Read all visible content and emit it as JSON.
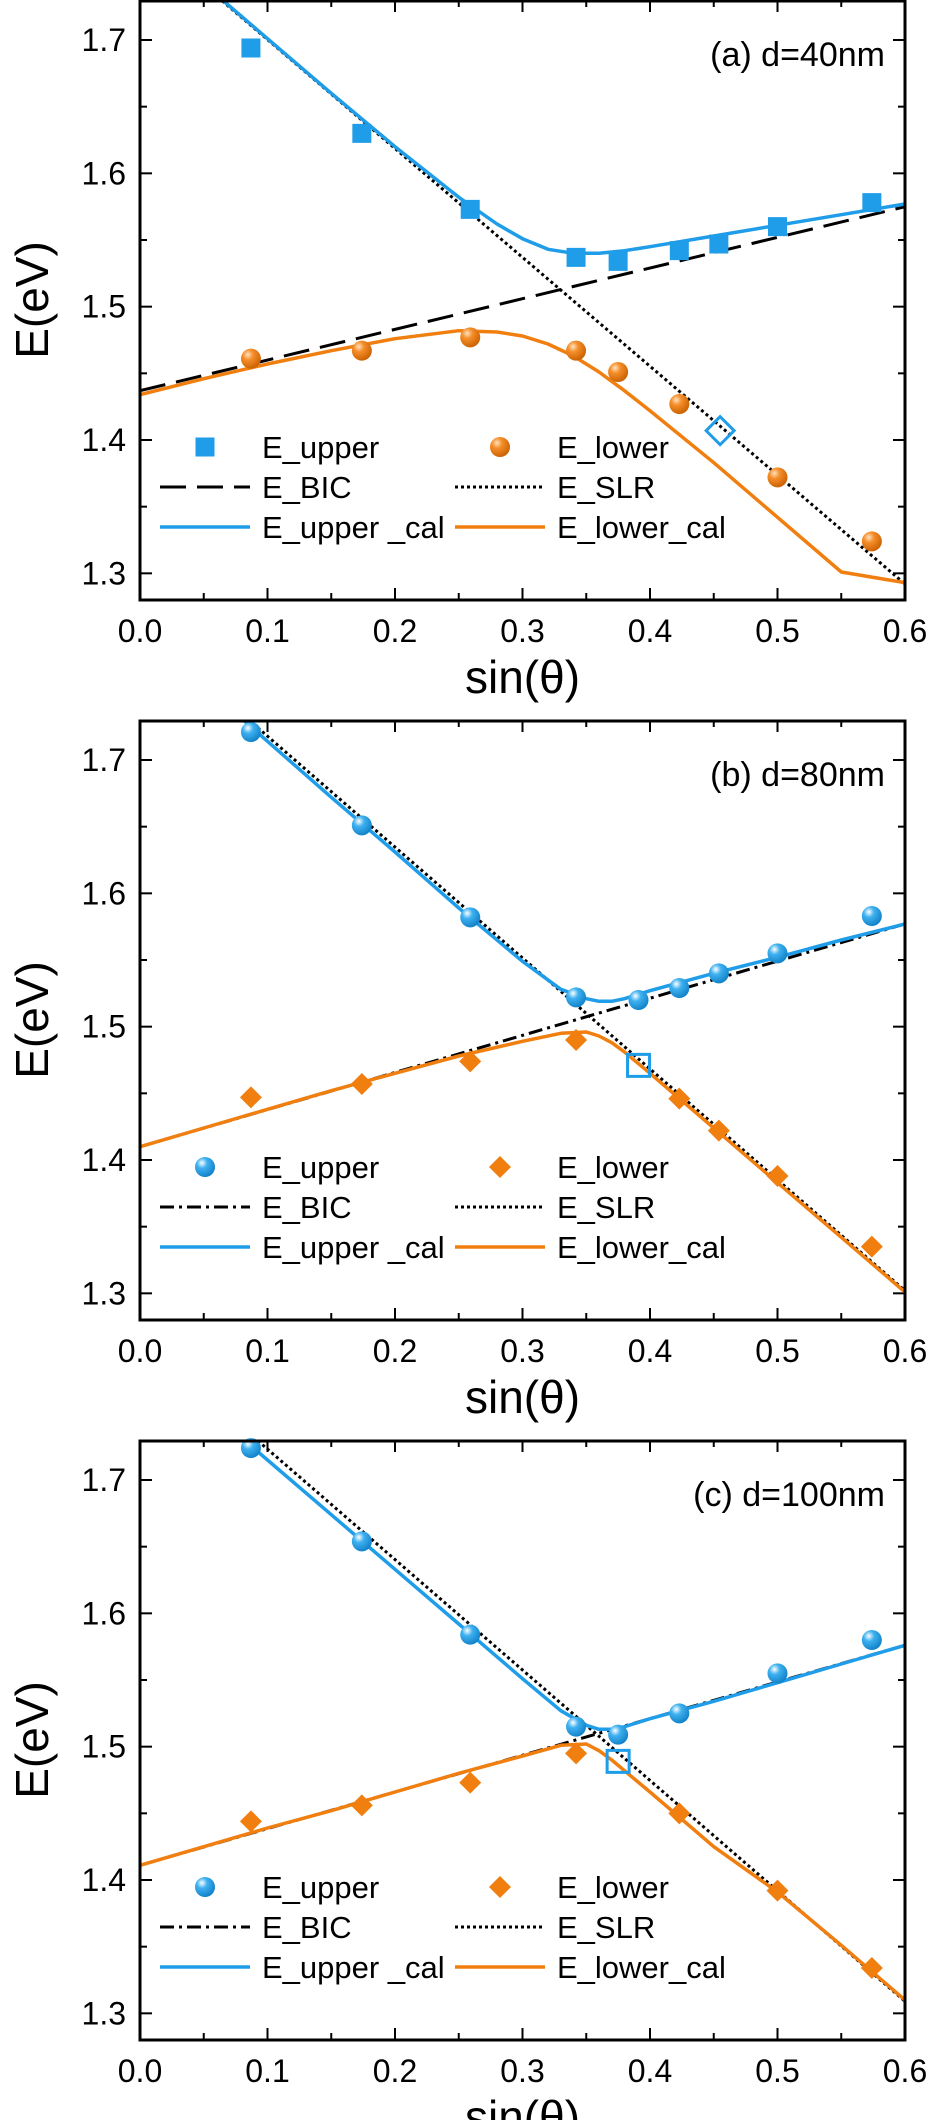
{
  "colors": {
    "blue": "#1F9DE8",
    "orange": "#F07F10",
    "black": "#000000"
  },
  "chart_data": [
    {
      "type": "line",
      "panel_label": "(a) d=40nm",
      "xlabel": "sin(θ)",
      "ylabel": "E(eV)",
      "xlim": [
        0.0,
        0.6
      ],
      "ylim": [
        1.28,
        1.73
      ],
      "xticks": [
        "0.0",
        "0.1",
        "0.2",
        "0.3",
        "0.4",
        "0.5",
        "0.6"
      ],
      "yticks": [
        "1.3",
        "1.4",
        "1.5",
        "1.6",
        "1.7"
      ],
      "legend": [
        {
          "label": "E_upper",
          "kind": "square",
          "color": "#1F9DE8"
        },
        {
          "label": "E_lower",
          "kind": "sphere",
          "color": "#F07F10"
        },
        {
          "label": "E_BIC",
          "kind": "dash",
          "color": "#000000"
        },
        {
          "label": "E_SLR",
          "kind": "dot",
          "color": "#000000"
        },
        {
          "label": "E_upper _cal",
          "kind": "solid",
          "color": "#1F9DE8"
        },
        {
          "label": "E_lower_cal",
          "kind": "solid",
          "color": "#F07F10"
        }
      ],
      "series": [
        {
          "name": "E_upper",
          "marker": "square",
          "color": "#1F9DE8",
          "x": [
            0.087,
            0.174,
            0.259,
            0.342,
            0.375,
            0.423,
            0.454,
            0.5,
            0.574
          ],
          "y": [
            1.694,
            1.63,
            1.573,
            1.537,
            1.534,
            1.542,
            1.547,
            1.56,
            1.578
          ]
        },
        {
          "name": "E_lower",
          "marker": "sphere",
          "color": "#F07F10",
          "x": [
            0.087,
            0.174,
            0.259,
            0.342,
            0.375,
            0.423,
            0.5,
            0.574
          ],
          "y": [
            1.461,
            1.467,
            1.477,
            1.467,
            1.451,
            1.427,
            1.372,
            1.324
          ]
        },
        {
          "name": "anticrossing",
          "marker": "open-diamond",
          "color": "#1F9DE8",
          "x": [
            0.455
          ],
          "y": [
            1.407
          ]
        },
        {
          "name": "E_BIC",
          "line": "dash",
          "color": "#000000",
          "x": [
            0.0,
            0.6
          ],
          "y": [
            1.437,
            1.575
          ]
        },
        {
          "name": "E_SLR",
          "line": "dot",
          "color": "#000000",
          "x": [
            0.0,
            0.6
          ],
          "y": [
            1.782,
            1.292
          ]
        },
        {
          "name": "E_upper _cal",
          "line": "solid",
          "color": "#1F9DE8",
          "x": [
            0.0,
            0.05,
            0.1,
            0.15,
            0.2,
            0.25,
            0.28,
            0.3,
            0.32,
            0.34,
            0.36,
            0.38,
            0.4,
            0.45,
            0.5,
            0.55,
            0.6
          ],
          "y": [
            1.783,
            1.742,
            1.701,
            1.66,
            1.62,
            1.582,
            1.562,
            1.551,
            1.543,
            1.54,
            1.54,
            1.542,
            1.545,
            1.553,
            1.561,
            1.569,
            1.577
          ]
        },
        {
          "name": "E_lower_cal",
          "line": "solid",
          "color": "#F07F10",
          "x": [
            0.0,
            0.05,
            0.1,
            0.15,
            0.2,
            0.25,
            0.28,
            0.3,
            0.32,
            0.34,
            0.36,
            0.38,
            0.4,
            0.45,
            0.5,
            0.55,
            0.6
          ],
          "y": [
            1.434,
            1.446,
            1.457,
            1.467,
            1.476,
            1.482,
            1.481,
            1.478,
            1.472,
            1.463,
            1.451,
            1.437,
            1.422,
            1.383,
            1.342,
            1.301,
            1.293
          ]
        }
      ]
    },
    {
      "type": "line",
      "panel_label": "(b) d=80nm",
      "xlabel": "sin(θ)",
      "ylabel": "E(eV)",
      "xlim": [
        0.0,
        0.6
      ],
      "ylim": [
        1.28,
        1.73
      ],
      "xticks": [
        "0.0",
        "0.1",
        "0.2",
        "0.3",
        "0.4",
        "0.5",
        "0.6"
      ],
      "yticks": [
        "1.3",
        "1.4",
        "1.5",
        "1.6",
        "1.7"
      ],
      "legend": [
        {
          "label": "E_upper",
          "kind": "sphere",
          "color": "#1F9DE8"
        },
        {
          "label": "E_lower",
          "kind": "diamond",
          "color": "#F07F10"
        },
        {
          "label": "E_BIC",
          "kind": "dashdot",
          "color": "#000000"
        },
        {
          "label": "E_SLR",
          "kind": "dot",
          "color": "#000000"
        },
        {
          "label": "E_upper _cal",
          "kind": "solid",
          "color": "#1F9DE8"
        },
        {
          "label": "E_lower_cal",
          "kind": "solid",
          "color": "#F07F10"
        }
      ],
      "series": [
        {
          "name": "E_upper",
          "marker": "sphere",
          "color": "#1F9DE8",
          "x": [
            0.087,
            0.174,
            0.259,
            0.342,
            0.391,
            0.423,
            0.454,
            0.5,
            0.574
          ],
          "y": [
            1.721,
            1.651,
            1.582,
            1.522,
            1.52,
            1.529,
            1.54,
            1.555,
            1.583
          ]
        },
        {
          "name": "E_lower",
          "marker": "diamond",
          "color": "#F07F10",
          "x": [
            0.087,
            0.174,
            0.259,
            0.342,
            0.423,
            0.454,
            0.5,
            0.574
          ],
          "y": [
            1.447,
            1.457,
            1.474,
            1.49,
            1.446,
            1.422,
            1.388,
            1.335
          ]
        },
        {
          "name": "anticrossing",
          "marker": "open-square",
          "color": "#1F9DE8",
          "x": [
            0.391
          ],
          "y": [
            1.471
          ]
        },
        {
          "name": "E_BIC",
          "line": "dashdot",
          "color": "#000000",
          "x": [
            0.0,
            0.6
          ],
          "y": [
            1.41,
            1.577
          ]
        },
        {
          "name": "E_SLR",
          "line": "dot",
          "color": "#000000",
          "x": [
            0.0,
            0.6
          ],
          "y": [
            1.801,
            1.302
          ]
        },
        {
          "name": "E_upper _cal",
          "line": "solid",
          "color": "#1F9DE8",
          "x": [
            0.0,
            0.05,
            0.1,
            0.15,
            0.2,
            0.25,
            0.3,
            0.33,
            0.35,
            0.36,
            0.37,
            0.38,
            0.4,
            0.45,
            0.5,
            0.55,
            0.6
          ],
          "y": [
            1.797,
            1.756,
            1.714,
            1.672,
            1.631,
            1.589,
            1.549,
            1.528,
            1.521,
            1.519,
            1.519,
            1.521,
            1.527,
            1.54,
            1.552,
            1.565,
            1.577
          ]
        },
        {
          "name": "E_lower_cal",
          "line": "solid",
          "color": "#F07F10",
          "x": [
            0.0,
            0.05,
            0.1,
            0.15,
            0.2,
            0.25,
            0.3,
            0.33,
            0.35,
            0.36,
            0.37,
            0.38,
            0.4,
            0.45,
            0.5,
            0.55,
            0.6
          ],
          "y": [
            1.41,
            1.424,
            1.438,
            1.452,
            1.465,
            1.478,
            1.489,
            1.495,
            1.496,
            1.493,
            1.488,
            1.481,
            1.465,
            1.424,
            1.383,
            1.342,
            1.301
          ]
        }
      ]
    },
    {
      "type": "line",
      "panel_label": "(c) d=100nm",
      "xlabel": "sin(θ)",
      "ylabel": "E(eV)",
      "xlim": [
        0.0,
        0.6
      ],
      "ylim": [
        1.28,
        1.73
      ],
      "xticks": [
        "0.0",
        "0.1",
        "0.2",
        "0.3",
        "0.4",
        "0.5",
        "0.6"
      ],
      "yticks": [
        "1.3",
        "1.4",
        "1.5",
        "1.6",
        "1.7"
      ],
      "legend": [
        {
          "label": "E_upper",
          "kind": "sphere",
          "color": "#1F9DE8"
        },
        {
          "label": "E_lower",
          "kind": "diamond",
          "color": "#F07F10"
        },
        {
          "label": "E_BIC",
          "kind": "dashdot",
          "color": "#000000"
        },
        {
          "label": "E_SLR",
          "kind": "dot",
          "color": "#000000"
        },
        {
          "label": "E_upper _cal",
          "kind": "solid",
          "color": "#1F9DE8"
        },
        {
          "label": "E_lower_cal",
          "kind": "solid",
          "color": "#F07F10"
        }
      ],
      "series": [
        {
          "name": "E_upper",
          "marker": "sphere",
          "color": "#1F9DE8",
          "x": [
            0.087,
            0.174,
            0.259,
            0.342,
            0.375,
            0.423,
            0.5,
            0.574
          ],
          "y": [
            1.724,
            1.654,
            1.584,
            1.515,
            1.509,
            1.525,
            1.555,
            1.58
          ]
        },
        {
          "name": "E_lower",
          "marker": "diamond",
          "color": "#F07F10",
          "x": [
            0.087,
            0.174,
            0.259,
            0.342,
            0.423,
            0.5,
            0.574
          ],
          "y": [
            1.444,
            1.456,
            1.473,
            1.495,
            1.45,
            1.392,
            1.334
          ]
        },
        {
          "name": "anticrossing",
          "marker": "open-square",
          "color": "#1F9DE8",
          "x": [
            0.375
          ],
          "y": [
            1.489
          ]
        },
        {
          "name": "E_BIC",
          "line": "dashdot",
          "color": "#000000",
          "x": [
            0.0,
            0.6
          ],
          "y": [
            1.411,
            1.576
          ]
        },
        {
          "name": "E_SLR",
          "line": "dot",
          "color": "#000000",
          "x": [
            0.0,
            0.6
          ],
          "y": [
            1.806,
            1.309
          ]
        },
        {
          "name": "E_upper _cal",
          "line": "solid",
          "color": "#1F9DE8",
          "x": [
            0.0,
            0.05,
            0.1,
            0.15,
            0.2,
            0.25,
            0.3,
            0.33,
            0.35,
            0.36,
            0.37,
            0.38,
            0.4,
            0.45,
            0.5,
            0.55,
            0.6
          ],
          "y": [
            1.797,
            1.756,
            1.715,
            1.674,
            1.633,
            1.592,
            1.551,
            1.527,
            1.516,
            1.513,
            1.513,
            1.515,
            1.521,
            1.534,
            1.548,
            1.562,
            1.576
          ]
        },
        {
          "name": "E_lower_cal",
          "line": "solid",
          "color": "#F07F10",
          "x": [
            0.0,
            0.05,
            0.1,
            0.15,
            0.2,
            0.25,
            0.3,
            0.33,
            0.35,
            0.36,
            0.37,
            0.38,
            0.4,
            0.45,
            0.5,
            0.55,
            0.6
          ],
          "y": [
            1.411,
            1.425,
            1.439,
            1.452,
            1.466,
            1.48,
            1.493,
            1.501,
            1.502,
            1.497,
            1.49,
            1.482,
            1.466,
            1.425,
            1.391,
            1.351,
            1.31
          ]
        }
      ]
    }
  ]
}
